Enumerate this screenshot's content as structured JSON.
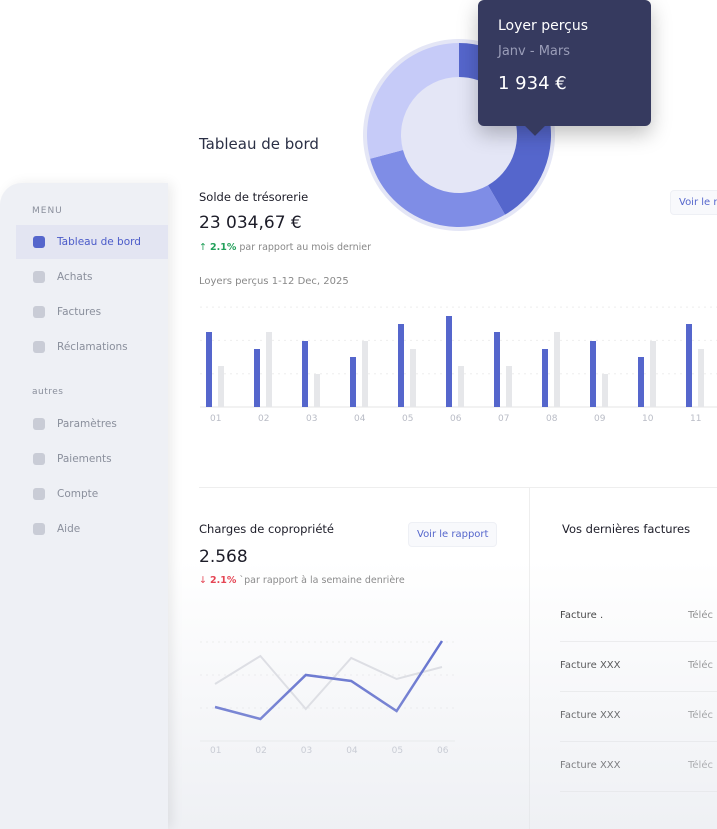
{
  "sidebar": {
    "menu_label": "MENU",
    "items": [
      {
        "label": "Tableau de bord",
        "icon": "bar-chart-icon",
        "active": true
      },
      {
        "label": "Achats",
        "icon": "cart-icon"
      },
      {
        "label": "Factures",
        "icon": "document-icon"
      },
      {
        "label": "Réclamations",
        "icon": "chat-icon"
      }
    ],
    "other_label": "autres",
    "other_items": [
      {
        "label": "Paramètres",
        "icon": "gear-icon"
      },
      {
        "label": "Paiements",
        "icon": "wallet-icon"
      },
      {
        "label": "Compte",
        "icon": "user-icon"
      },
      {
        "label": "Aide",
        "icon": "help-icon"
      }
    ]
  },
  "header": {
    "title": "Tableau de bord"
  },
  "treasury": {
    "title": "Solde de trésorerie",
    "value": "23 034,67 €",
    "change": "2.1%",
    "change_text": "par rapport au mois dernier",
    "button": "Voir le rapport",
    "color_up": "#22a05a"
  },
  "tooltip": {
    "title": "Loyer perçus",
    "period": "Janv - Mars",
    "value": "1 934 €"
  },
  "charges": {
    "title": "Charges de copropriété",
    "value": "2.568",
    "change": "2.1%",
    "change_text": "`par rapport à la semaine denrière",
    "button": "Voir le rapport",
    "color_down": "#e53e4d"
  },
  "invoices": {
    "title": "Vos dernières factures",
    "rows": [
      {
        "name": "Facture .",
        "action": "Téléc"
      },
      {
        "name": "Facture XXX",
        "action": "Téléc"
      },
      {
        "name": "Facture XXX",
        "action": "Téléc"
      },
      {
        "name": "Facture XXX",
        "action": "Téléc"
      }
    ]
  },
  "chart_data": [
    {
      "type": "bar",
      "title": "Loyers perçus 1-12 Dec, 2025",
      "categories": [
        "01",
        "02",
        "03",
        "04",
        "05",
        "06",
        "07",
        "08",
        "09",
        "10",
        "11"
      ],
      "series": [
        {
          "values": [
            75,
            58,
            66,
            50,
            83,
            91,
            75,
            58,
            66,
            50,
            83
          ],
          "color": "#5566cc"
        },
        {
          "values": [
            41,
            75,
            33,
            66,
            58,
            41,
            41,
            75,
            33,
            66,
            58
          ],
          "color": "#e6e7ea"
        }
      ],
      "ylim": [
        0,
        100
      ],
      "grid": true
    },
    {
      "type": "line",
      "categories": [
        "01",
        "02",
        "03",
        "04",
        "05",
        "06"
      ],
      "series": [
        {
          "values": [
            34,
            22,
            66,
            60,
            30,
            100
          ],
          "color": "#4b5bc9"
        },
        {
          "values": [
            57,
            85,
            32,
            83,
            62,
            74
          ],
          "color": "#dcdde2"
        }
      ],
      "ylim": [
        0,
        100
      ],
      "grid": true
    },
    {
      "type": "pie",
      "donut": true,
      "values": [
        150,
        105,
        105
      ],
      "colors": [
        "#5566cc",
        "#7f8de6",
        "#c6cbf8"
      ]
    }
  ]
}
